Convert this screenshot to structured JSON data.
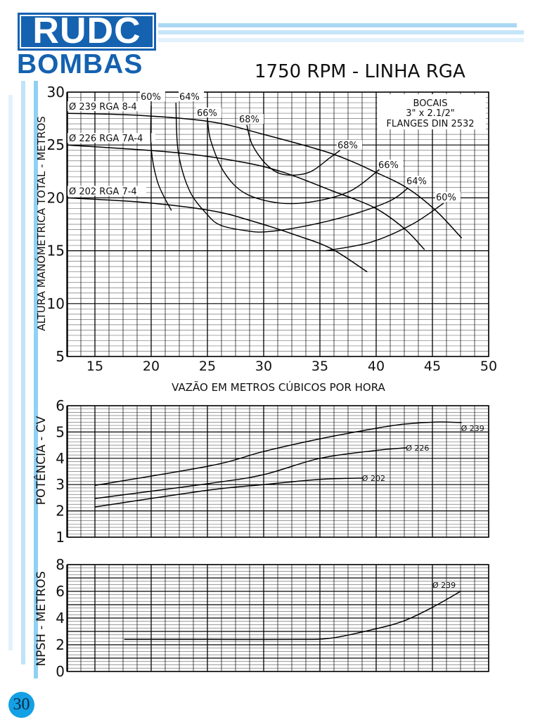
{
  "brand": {
    "name": "RUDC",
    "subtitle": "BOMBAS",
    "color": "#1462b0"
  },
  "title": "1750 RPM - LINHA RGA",
  "page_number": "30",
  "nozzle_box": {
    "line1": "BOCAIS",
    "line2": "3\" x 2.1/2\"",
    "line3": "FLANGES DIN 2532"
  },
  "chart_data": [
    {
      "type": "line",
      "title": "",
      "xlabel": "VAZÃO EM METROS CÚBICOS POR HORA",
      "ylabel": "ALTURA MANÓMETRICA TOTAL - METROS",
      "xlim": [
        12.5,
        50
      ],
      "ylim": [
        5,
        30
      ],
      "xticks": [
        "15",
        "20",
        "25",
        "30",
        "35",
        "40",
        "45",
        "50"
      ],
      "yticks": [
        "5",
        "10",
        "15",
        "20",
        "25",
        "30"
      ],
      "grid": true,
      "series": [
        {
          "name": "Ø 239 RGA 8-4",
          "x": [
            12.5,
            19,
            25.3,
            30,
            36,
            40,
            42.8,
            45.3,
            47.6
          ],
          "y": [
            28.0,
            27.8,
            27.2,
            26.0,
            24.2,
            22.4,
            20.9,
            18.8,
            16.2
          ]
        },
        {
          "name": "Ø 226 RGA 7A-4",
          "x": [
            12.5,
            22,
            28,
            31.8,
            36,
            39.8,
            42.5,
            44.3
          ],
          "y": [
            25.0,
            24.3,
            23.4,
            22.4,
            20.7,
            19.1,
            17.1,
            15.1
          ]
        },
        {
          "name": "Ø 202 RGA 7-4",
          "x": [
            12.5,
            19,
            25.3,
            29,
            32.8,
            36,
            39.2
          ],
          "y": [
            20.0,
            19.6,
            18.8,
            17.8,
            16.5,
            15.2,
            13.0
          ]
        }
      ],
      "efficiency_curves": [
        {
          "name": "60%",
          "x": [
            20.0,
            20.0,
            20.6,
            21.8
          ],
          "y": [
            28.7,
            24.7,
            21.4,
            18.8
          ]
        },
        {
          "name": "64%",
          "x": [
            22.2,
            22.4,
            23.4,
            25.0,
            26.2,
            28.4,
            30.3,
            34.0,
            37.8,
            41.2,
            42.8
          ],
          "y": [
            29.0,
            24.4,
            20.7,
            18.4,
            17.4,
            16.9,
            16.8,
            17.4,
            18.4,
            19.7,
            20.9
          ]
        },
        {
          "name": "66%",
          "x": [
            25.0,
            25.3,
            26.5,
            28.4,
            31.5,
            34.7,
            37.8,
            40.3
          ],
          "y": [
            27.5,
            25.4,
            22.4,
            20.4,
            19.5,
            19.7,
            20.7,
            22.7
          ]
        },
        {
          "name": "68%",
          "x": [
            28.5,
            29.0,
            30.3,
            31.8,
            34.0,
            35.9,
            36.8
          ],
          "y": [
            26.9,
            25.0,
            23.1,
            22.2,
            22.4,
            23.8,
            24.5
          ]
        },
        {
          "name": "60%",
          "x": [
            35.5,
            39.5,
            43.2,
            46.0
          ],
          "y": [
            15.0,
            15.8,
            17.5,
            19.5
          ]
        }
      ],
      "efficiency_labels": [
        "60%",
        "64%",
        "66%",
        "68%",
        "68%",
        "66%",
        "64%",
        "60%"
      ]
    },
    {
      "type": "line",
      "ylabel": "POTÊNCIA - CV",
      "xlim": [
        12.5,
        50
      ],
      "ylim": [
        1,
        6
      ],
      "yticks": [
        "1",
        "2",
        "3",
        "4",
        "5",
        "6"
      ],
      "grid": true,
      "series": [
        {
          "name": "Ø 239",
          "x": [
            15,
            25.3,
            30,
            35,
            40,
            42.5,
            45.3,
            47.6
          ],
          "y": [
            2.97,
            3.72,
            4.26,
            4.74,
            5.14,
            5.3,
            5.38,
            5.36
          ]
        },
        {
          "name": "Ø 226",
          "x": [
            15,
            25.3,
            30,
            35,
            40,
            42.7
          ],
          "y": [
            2.47,
            3.05,
            3.38,
            4.0,
            4.3,
            4.4
          ]
        },
        {
          "name": "Ø 202",
          "x": [
            15,
            25.3,
            30,
            35,
            38.8
          ],
          "y": [
            2.15,
            2.8,
            3.0,
            3.2,
            3.25
          ]
        }
      ]
    },
    {
      "type": "line",
      "ylabel": "NPSH - METROS",
      "xlim": [
        12.5,
        50
      ],
      "ylim": [
        0,
        8
      ],
      "yticks": [
        "0",
        "2",
        "4",
        "6",
        "8"
      ],
      "grid": true,
      "series": [
        {
          "name": "Ø 239",
          "x": [
            17.6,
            25,
            32.8,
            36,
            40,
            42.5,
            45,
            47.5
          ],
          "y": [
            2.4,
            2.4,
            2.4,
            2.5,
            3.2,
            3.8,
            4.8,
            6.0
          ]
        }
      ]
    }
  ]
}
